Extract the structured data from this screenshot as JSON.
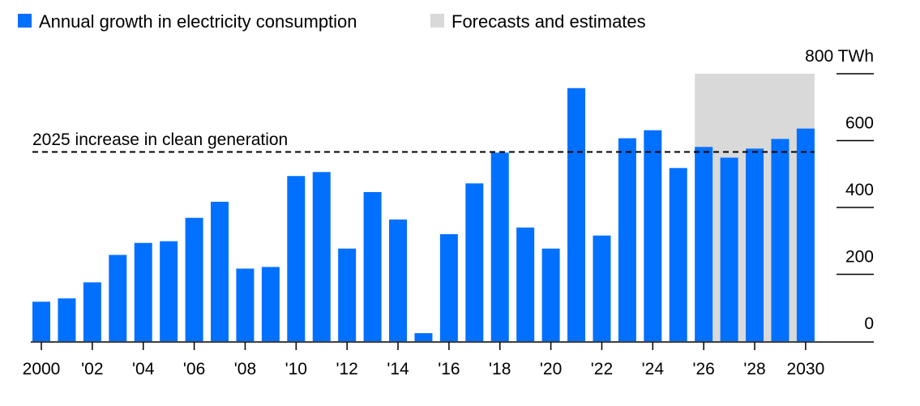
{
  "chart_data": {
    "type": "bar",
    "unit": "TWh",
    "legend": [
      {
        "label": "Annual growth in electricity consumption",
        "color": "#0270FF"
      },
      {
        "label": "Forecasts and estimates",
        "color": "#D9D9D9"
      }
    ],
    "legend_placement": "top-left",
    "categories": [
      2000,
      2001,
      2002,
      2003,
      2004,
      2005,
      2006,
      2007,
      2008,
      2009,
      2010,
      2011,
      2012,
      2013,
      2014,
      2015,
      2016,
      2017,
      2018,
      2019,
      2020,
      2021,
      2022,
      2023,
      2024,
      2025,
      2026,
      2027,
      2028,
      2029,
      2030
    ],
    "values": [
      118,
      128,
      176,
      258,
      294,
      299,
      369,
      417,
      217,
      222,
      494,
      506,
      277,
      446,
      364,
      24,
      320,
      472,
      564,
      340,
      277,
      757,
      316,
      607,
      631,
      518,
      581,
      549,
      576,
      605,
      636
    ],
    "forecast_range": [
      2026,
      2030
    ],
    "reference_line": {
      "label": "2025 increase in clean generation",
      "value": 566
    },
    "ylim": [
      0,
      800
    ],
    "yticks": [
      0,
      200,
      400,
      600,
      800
    ],
    "ytick_labels": [
      "0",
      "200",
      "400",
      "600",
      "800 TWh"
    ],
    "xtick_years": [
      2000,
      2002,
      2004,
      2006,
      2008,
      2010,
      2012,
      2014,
      2016,
      2018,
      2020,
      2022,
      2024,
      2026,
      2028,
      2030
    ],
    "xtick_labels": [
      "2000",
      "'02",
      "'04",
      "'06",
      "'08",
      "'10",
      "'12",
      "'14",
      "'16",
      "'18",
      "'20",
      "'22",
      "'24",
      "'26",
      "'28",
      "2030"
    ],
    "grid": false,
    "y_axis_side": "right"
  }
}
